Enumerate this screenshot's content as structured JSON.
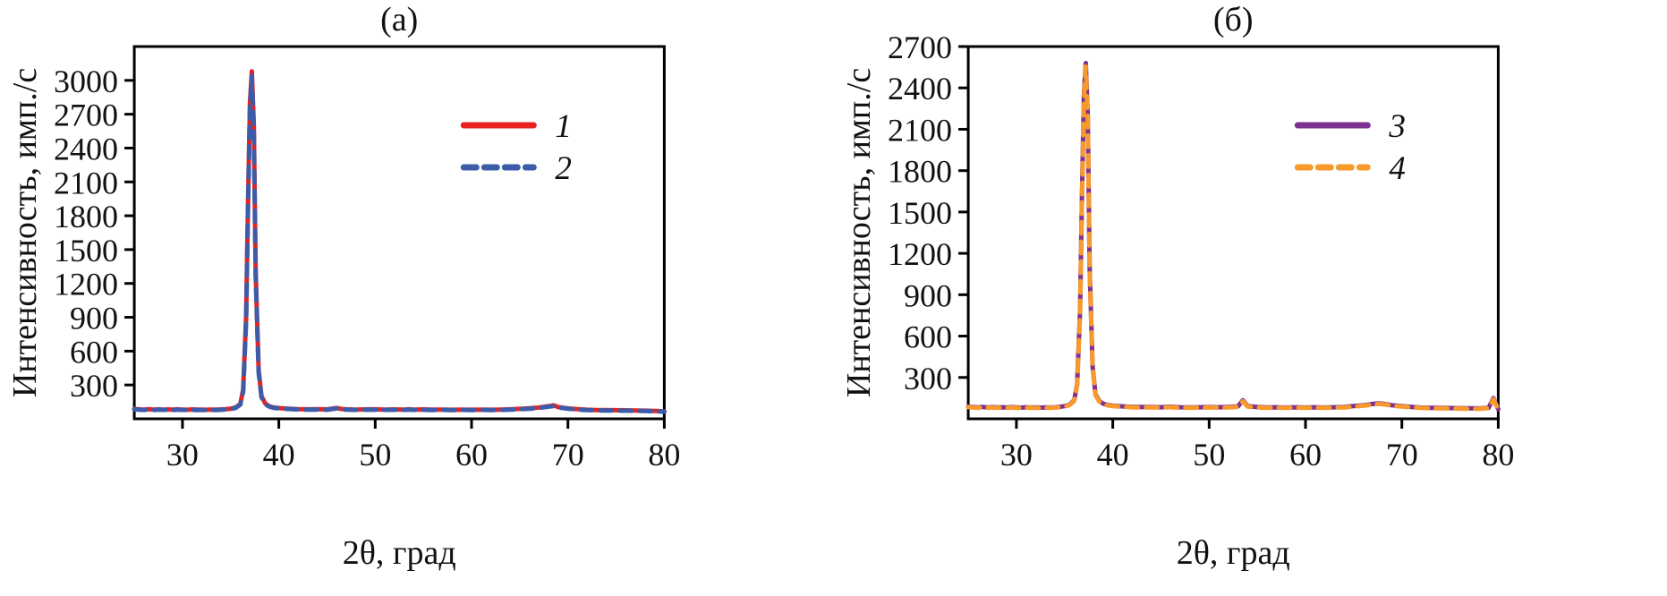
{
  "figure": {
    "background": "#ffffff",
    "panel_labels": [
      "(а)",
      "(б)"
    ]
  },
  "chart_data": [
    {
      "type": "line",
      "title": "(а)",
      "xlabel": "2θ, град",
      "ylabel": "Интенсивность, имп./с",
      "xlim": [
        25,
        80
      ],
      "ylim": [
        0,
        3300
      ],
      "xticks": [
        30,
        40,
        50,
        60,
        70,
        80
      ],
      "yticks": [
        300,
        600,
        900,
        1200,
        1500,
        1800,
        2100,
        2400,
        2700,
        3000
      ],
      "grid": false,
      "legend_position": "upper-right-inside",
      "x": [
        25,
        25.5,
        26,
        26.5,
        27,
        27.5,
        28,
        28.5,
        29,
        29.5,
        30,
        30.5,
        31,
        31.5,
        32,
        32.5,
        33,
        33.5,
        34,
        34.5,
        35,
        35.5,
        36,
        36.3,
        36.6,
        36.8,
        37,
        37.2,
        37.4,
        37.6,
        37.9,
        38.2,
        38.6,
        39,
        39.5,
        40,
        41,
        42,
        43,
        44,
        45,
        46,
        46.5,
        47,
        48,
        49,
        50,
        51,
        52,
        53,
        53.5,
        54,
        55,
        56,
        57,
        58,
        59,
        60,
        61,
        62,
        63,
        64,
        65,
        66,
        67,
        67.5,
        68,
        68.5,
        69,
        70,
        71,
        72,
        73,
        74,
        75,
        76,
        77,
        78,
        79,
        79.5,
        80
      ],
      "series": [
        {
          "name": "1",
          "color": "#e8231f",
          "dash": "solid",
          "peak_2theta": 37.2,
          "peak_intensity": 3080,
          "y": [
            88,
            84,
            82,
            85,
            81,
            84,
            82,
            83,
            81,
            84,
            82,
            80,
            83,
            81,
            82,
            80,
            82,
            81,
            83,
            86,
            90,
            100,
            130,
            260,
            900,
            1900,
            2800,
            3080,
            2600,
            1300,
            430,
            200,
            135,
            112,
            100,
            95,
            90,
            86,
            84,
            85,
            83,
            96,
            87,
            84,
            82,
            83,
            84,
            82,
            83,
            82,
            84,
            82,
            83,
            81,
            82,
            80,
            82,
            80,
            82,
            80,
            82,
            84,
            88,
            93,
            100,
            106,
            112,
            120,
            104,
            93,
            85,
            80,
            78,
            77,
            76,
            75,
            74,
            72,
            70,
            68,
            66
          ]
        },
        {
          "name": "2",
          "color": "#3c5ba9",
          "dash": "dashed",
          "peak_2theta": 37.2,
          "peak_intensity": 3040,
          "y": [
            84,
            80,
            79,
            82,
            78,
            81,
            79,
            80,
            78,
            81,
            79,
            77,
            80,
            78,
            79,
            77,
            79,
            78,
            80,
            83,
            87,
            96,
            125,
            240,
            860,
            1850,
            2750,
            3040,
            2560,
            1260,
            410,
            190,
            128,
            108,
            96,
            92,
            87,
            83,
            81,
            82,
            80,
            92,
            84,
            81,
            79,
            80,
            81,
            79,
            80,
            79,
            81,
            79,
            80,
            78,
            79,
            77,
            79,
            77,
            79,
            77,
            79,
            81,
            85,
            90,
            96,
            102,
            108,
            112,
            100,
            90,
            82,
            77,
            75,
            74,
            73,
            72,
            71,
            69,
            67,
            65,
            63
          ]
        }
      ]
    },
    {
      "type": "line",
      "title": "(б)",
      "xlabel": "2θ, град",
      "ylabel": "Интенсивность, имп./с",
      "xlim": [
        25,
        80
      ],
      "ylim": [
        0,
        2700
      ],
      "xticks": [
        30,
        40,
        50,
        60,
        70,
        80
      ],
      "yticks": [
        300,
        600,
        900,
        1200,
        1500,
        1800,
        2100,
        2400,
        2700
      ],
      "grid": false,
      "legend_position": "upper-right-inside",
      "x": [
        25,
        25.5,
        26,
        26.5,
        27,
        27.5,
        28,
        28.5,
        29,
        29.5,
        30,
        30.5,
        31,
        31.5,
        32,
        32.5,
        33,
        33.5,
        34,
        34.5,
        35,
        35.5,
        36,
        36.3,
        36.6,
        36.8,
        37,
        37.2,
        37.4,
        37.6,
        37.9,
        38.2,
        38.6,
        39,
        39.5,
        40,
        41,
        42,
        43,
        44,
        45,
        46,
        46.5,
        47,
        48,
        49,
        50,
        51,
        52,
        53,
        53.5,
        54,
        55,
        56,
        57,
        58,
        59,
        60,
        61,
        62,
        63,
        64,
        65,
        66,
        67,
        67.5,
        68,
        68.5,
        69,
        70,
        71,
        72,
        73,
        74,
        75,
        76,
        77,
        78,
        79,
        79.5,
        80
      ],
      "series": [
        {
          "name": "3",
          "color": "#7d3190",
          "dash": "solid",
          "peak_2theta": 37.2,
          "peak_intensity": 2580,
          "y": [
            88,
            85,
            83,
            86,
            82,
            85,
            83,
            84,
            82,
            85,
            83,
            81,
            84,
            82,
            83,
            81,
            83,
            82,
            84,
            87,
            92,
            102,
            135,
            250,
            780,
            1600,
            2350,
            2580,
            2200,
            1100,
            380,
            180,
            130,
            110,
            100,
            95,
            90,
            87,
            85,
            86,
            84,
            88,
            85,
            84,
            83,
            84,
            85,
            84,
            86,
            90,
            135,
            92,
            85,
            83,
            84,
            82,
            84,
            82,
            84,
            82,
            84,
            86,
            92,
            98,
            108,
            112,
            110,
            105,
            98,
            92,
            86,
            82,
            80,
            79,
            78,
            77,
            76,
            75,
            80,
            150,
            70
          ]
        },
        {
          "name": "4",
          "color": "#f79a2b",
          "dash": "dashed",
          "peak_2theta": 37.2,
          "peak_intensity": 2555,
          "y": [
            85,
            82,
            80,
            83,
            79,
            82,
            80,
            81,
            79,
            82,
            80,
            78,
            81,
            79,
            80,
            78,
            80,
            79,
            81,
            84,
            89,
            99,
            130,
            240,
            760,
            1570,
            2320,
            2555,
            2170,
            1080,
            370,
            172,
            125,
            106,
            97,
            92,
            87,
            84,
            82,
            83,
            81,
            85,
            82,
            81,
            80,
            81,
            82,
            81,
            83,
            87,
            128,
            89,
            82,
            80,
            81,
            79,
            81,
            79,
            81,
            79,
            81,
            83,
            89,
            95,
            104,
            108,
            106,
            101,
            95,
            89,
            83,
            79,
            77,
            76,
            75,
            74,
            73,
            72,
            77,
            142,
            66
          ]
        }
      ]
    }
  ]
}
